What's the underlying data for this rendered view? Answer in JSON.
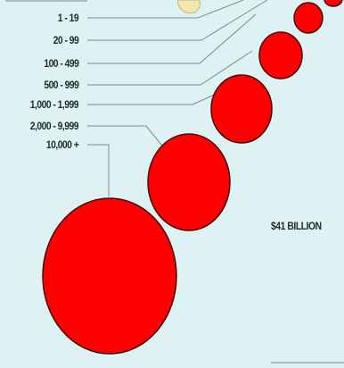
{
  "legend": {
    "items": [
      {
        "label": "1 - 19"
      },
      {
        "label": "20 - 99"
      },
      {
        "label": "100 - 499"
      },
      {
        "label": "500 - 999"
      },
      {
        "label": "1,000 - 1,999"
      },
      {
        "label": "2,000 - 9,999"
      },
      {
        "label": "10,000 +"
      }
    ]
  },
  "total_label": "$41 BILLION",
  "colors": {
    "background": "#dff2f3",
    "bubble_fill": "#ff0000",
    "bubble_stroke": "#3a0a0a",
    "leader_line": "#7f8a8c",
    "blob_fill": "#f3e6b0"
  }
}
